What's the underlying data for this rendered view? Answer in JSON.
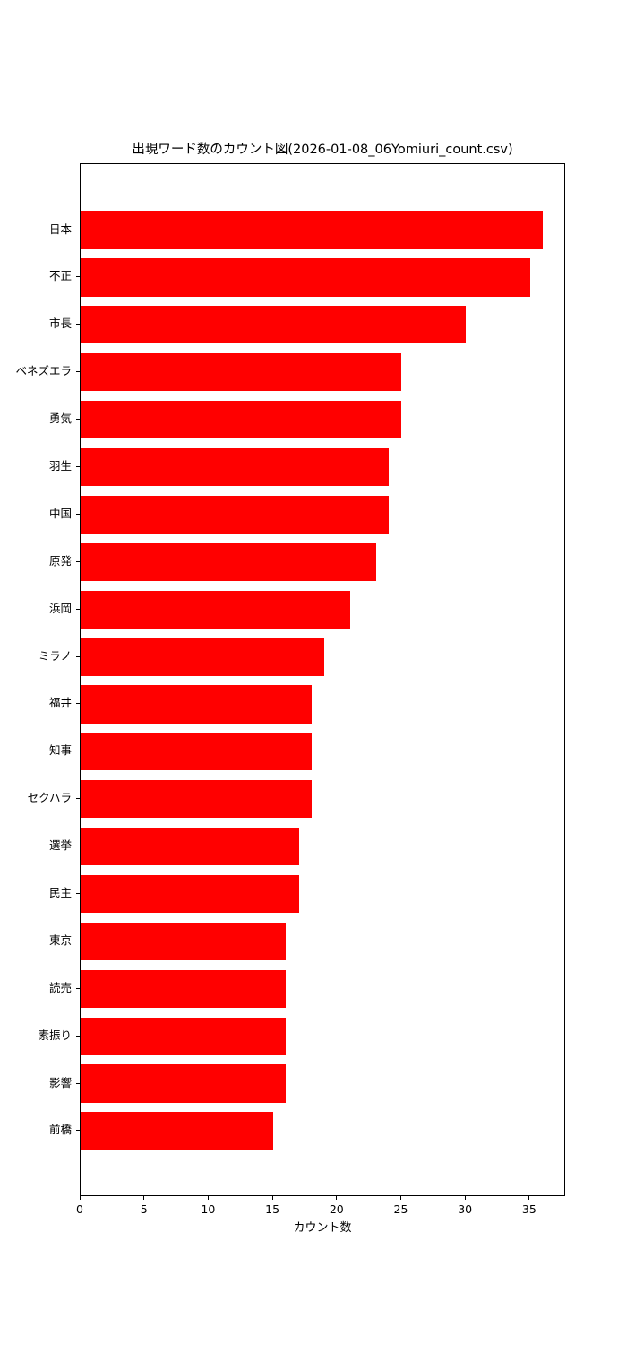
{
  "chart_data": {
    "type": "bar",
    "orientation": "horizontal",
    "title": "出現ワード数のカウント図(2026-01-08_06Yomiuri_count.csv)",
    "xlabel": "カウント数",
    "ylabel": "",
    "categories": [
      "日本",
      "不正",
      "市長",
      "ベネズエラ",
      "勇気",
      "羽生",
      "中国",
      "原発",
      "浜岡",
      "ミラノ",
      "福井",
      "知事",
      "セクハラ",
      "選挙",
      "民主",
      "東京",
      "読売",
      "素振り",
      "影響",
      "前橋"
    ],
    "values": [
      36,
      35,
      30,
      25,
      25,
      24,
      24,
      23,
      21,
      19,
      18,
      18,
      18,
      17,
      17,
      16,
      16,
      16,
      16,
      15
    ],
    "xlim": [
      0,
      37.8
    ],
    "xticks": [
      0,
      5,
      10,
      15,
      20,
      25,
      30,
      35
    ],
    "xtick_labels": [
      "0",
      "5",
      "10",
      "15",
      "20",
      "25",
      "30",
      "35"
    ],
    "bar_color": "#ff0000",
    "bar_rel_height": 0.8,
    "grid": false,
    "legend": null
  }
}
